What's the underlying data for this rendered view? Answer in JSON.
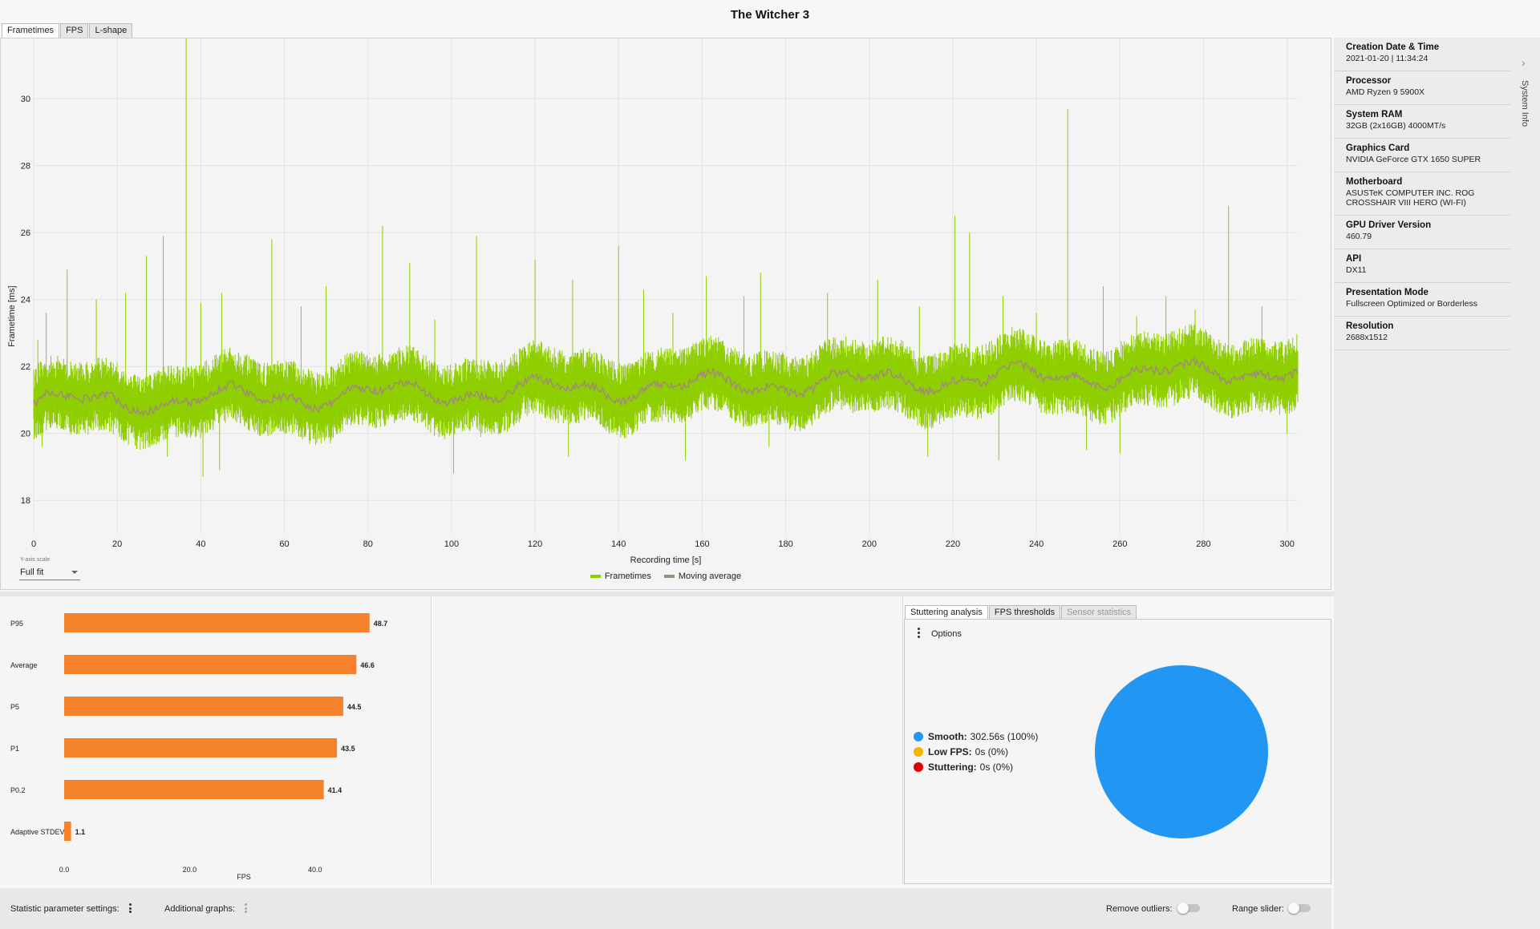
{
  "window": {
    "title": "The Witcher 3"
  },
  "tabs": [
    {
      "label": "Frametimes",
      "active": true
    },
    {
      "label": "FPS",
      "active": false
    },
    {
      "label": "L-shape",
      "active": false
    }
  ],
  "frametime_chart": {
    "yscale_label": "Y-axis scale",
    "yscale_value": "Full fit",
    "legend": [
      {
        "name": "Frametimes",
        "color": "#8fce00"
      },
      {
        "name": "Moving average",
        "color": "#a08c7a"
      }
    ]
  },
  "chart_data": [
    {
      "type": "line",
      "xlabel": "Recording time [s]",
      "ylabel": "Frametime [ms]",
      "xlim": [
        0,
        302.56
      ],
      "ylim": [
        17,
        31.8
      ],
      "xticks": [
        0,
        20,
        40,
        60,
        80,
        100,
        120,
        140,
        160,
        180,
        200,
        220,
        240,
        260,
        280,
        300
      ],
      "yticks": [
        18,
        20,
        22,
        24,
        26,
        28,
        30
      ],
      "grid": true,
      "legend_position": "bottom",
      "series": [
        {
          "name": "Frametimes",
          "color": "#8fce00",
          "baseline_start": 20.9,
          "baseline_end": 21.9,
          "noise_band": 0.8
        },
        {
          "name": "Moving average",
          "color": "#a08c7a"
        }
      ],
      "spikes": [
        {
          "x": 1,
          "y": 22.8
        },
        {
          "x": 3,
          "y": 23.6
        },
        {
          "x": 8,
          "y": 24.9
        },
        {
          "x": 15,
          "y": 24.0
        },
        {
          "x": 22,
          "y": 24.2
        },
        {
          "x": 27,
          "y": 25.3
        },
        {
          "x": 31,
          "y": 25.9
        },
        {
          "x": 36.5,
          "y": 31.8
        },
        {
          "x": 40,
          "y": 23.9
        },
        {
          "x": 45,
          "y": 24.2
        },
        {
          "x": 57,
          "y": 25.8
        },
        {
          "x": 64,
          "y": 23.8
        },
        {
          "x": 70,
          "y": 24.4
        },
        {
          "x": 83.5,
          "y": 26.2
        },
        {
          "x": 90,
          "y": 25.1
        },
        {
          "x": 96,
          "y": 23.4
        },
        {
          "x": 106,
          "y": 25.9
        },
        {
          "x": 120,
          "y": 25.2
        },
        {
          "x": 129,
          "y": 24.6
        },
        {
          "x": 140,
          "y": 25.6
        },
        {
          "x": 146,
          "y": 24.3
        },
        {
          "x": 153,
          "y": 23.6
        },
        {
          "x": 161,
          "y": 24.7
        },
        {
          "x": 170,
          "y": 24.1
        },
        {
          "x": 174,
          "y": 24.8
        },
        {
          "x": 190,
          "y": 24.2
        },
        {
          "x": 202,
          "y": 24.6
        },
        {
          "x": 212,
          "y": 23.8
        },
        {
          "x": 220.5,
          "y": 26.5
        },
        {
          "x": 224,
          "y": 26.0
        },
        {
          "x": 232,
          "y": 24.1
        },
        {
          "x": 240,
          "y": 23.6
        },
        {
          "x": 247.5,
          "y": 29.7
        },
        {
          "x": 256,
          "y": 24.4
        },
        {
          "x": 264,
          "y": 23.5
        },
        {
          "x": 271,
          "y": 24.1
        },
        {
          "x": 278,
          "y": 23.7
        },
        {
          "x": 286,
          "y": 26.8
        },
        {
          "x": 294,
          "y": 23.8
        }
      ],
      "dips": [
        {
          "x": 2,
          "y": 19.6
        },
        {
          "x": 32,
          "y": 19.3
        },
        {
          "x": 40.5,
          "y": 18.7
        },
        {
          "x": 44.5,
          "y": 18.9
        },
        {
          "x": 71,
          "y": 19.7
        },
        {
          "x": 100.5,
          "y": 18.8
        },
        {
          "x": 107,
          "y": 19.9
        },
        {
          "x": 128,
          "y": 19.3
        },
        {
          "x": 156,
          "y": 19.2
        },
        {
          "x": 176,
          "y": 19.6
        },
        {
          "x": 214,
          "y": 19.3
        },
        {
          "x": 231,
          "y": 19.2
        },
        {
          "x": 252,
          "y": 19.5
        },
        {
          "x": 260,
          "y": 19.4
        },
        {
          "x": 300,
          "y": 20.0
        }
      ]
    },
    {
      "type": "bar",
      "orientation": "horizontal",
      "xlabel": "FPS",
      "xlim": [
        0,
        55
      ],
      "xticks": [
        "0.0",
        "20.0",
        "40.0"
      ],
      "color": "#f5822a",
      "categories": [
        "P95",
        "Average",
        "P5",
        "P1",
        "P0.2",
        "Adaptive STDEV"
      ],
      "values": [
        48.7,
        46.6,
        44.5,
        43.5,
        41.4,
        1.1
      ]
    },
    {
      "type": "pie",
      "slices": [
        {
          "label": "Smooth:",
          "value_text": "302.56s (100%)",
          "value": 100,
          "color": "#2196f3"
        },
        {
          "label": "Low FPS:",
          "value_text": "0s (0%)",
          "value": 0,
          "color": "#f5b400"
        },
        {
          "label": "Stuttering:",
          "value_text": "0s (0%)",
          "value": 0,
          "color": "#e00000"
        }
      ]
    }
  ],
  "stutter": {
    "tabs": [
      {
        "label": "Stuttering analysis",
        "state": "active"
      },
      {
        "label": "FPS thresholds",
        "state": "normal"
      },
      {
        "label": "Sensor statistics",
        "state": "disabled"
      }
    ],
    "options_label": "Options"
  },
  "system_info": {
    "panel_label": "System Info",
    "items": [
      {
        "label": "Creation Date & Time",
        "value": "2021-01-20  |  11:34:24"
      },
      {
        "label": "Processor",
        "value": "AMD Ryzen 9 5900X"
      },
      {
        "label": "System RAM",
        "value": "32GB (2x16GB) 4000MT/s"
      },
      {
        "label": "Graphics Card",
        "value": "NVIDIA GeForce GTX 1650 SUPER"
      },
      {
        "label": "Motherboard",
        "value": "ASUSTeK COMPUTER INC. ROG CROSSHAIR VIII HERO (WI-FI)"
      },
      {
        "label": "GPU Driver Version",
        "value": "460.79"
      },
      {
        "label": "API",
        "value": "DX11"
      },
      {
        "label": "Presentation Mode",
        "value": "Fullscreen Optimized or Borderless"
      },
      {
        "label": "Resolution",
        "value": "2688x1512"
      }
    ]
  },
  "bottom_bar": {
    "statistic_settings_label": "Statistic parameter settings:",
    "additional_graphs_label": "Additional graphs:",
    "remove_outliers_label": "Remove outliers:",
    "remove_outliers_on": false,
    "range_slider_label": "Range slider:",
    "range_slider_on": false
  }
}
